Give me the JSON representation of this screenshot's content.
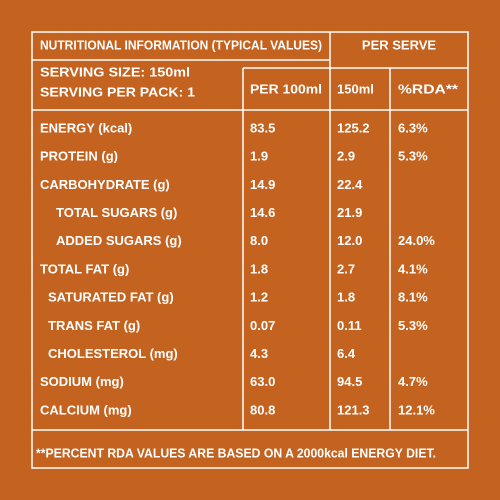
{
  "header": {
    "title": "NUTRITIONAL INFORMATION (TYPICAL VALUES)",
    "serving_size": "SERVING SIZE: 150ml",
    "serving_per_pack": "SERVING PER PACK: 1",
    "per_serve": "PER SERVE",
    "columns": [
      "PER 100ml",
      "150ml",
      "%RDA**"
    ]
  },
  "table": {
    "rows": [
      [
        "ENERGY (kcal)",
        "83.5",
        "125.2",
        "6.3%"
      ],
      [
        "PROTEIN (g)",
        "1.9",
        "2.9",
        "5.3%"
      ],
      [
        "CARBOHYDRATE (g)",
        "14.9",
        "22.4"
      ],
      [
        "TOTAL SUGARS (g)",
        "14.6",
        "21.9"
      ],
      [
        "ADDED SUGARS (g)",
        "8.0",
        "12.0",
        "24.0%"
      ],
      [
        "TOTAL FAT (g)",
        "1.8",
        "2.7",
        "4.1%"
      ],
      [
        "SATURATED FAT (g)",
        "1.2",
        "1.8",
        "8.1%"
      ],
      [
        "TRANS FAT (g)",
        "0.07",
        "0.11",
        "5.3%"
      ],
      [
        "CHOLESTEROL (mg)",
        "4.3",
        "6.4"
      ],
      [
        "SODIUM (mg)",
        "63.0",
        "94.5",
        "4.7%"
      ],
      [
        "CALCIUM (mg)",
        "80.8",
        "121.3",
        "12.1%"
      ]
    ]
  },
  "footnote": "**PERCENT RDA VALUES ARE BASED ON A 2000kcal ENERGY DIET."
}
